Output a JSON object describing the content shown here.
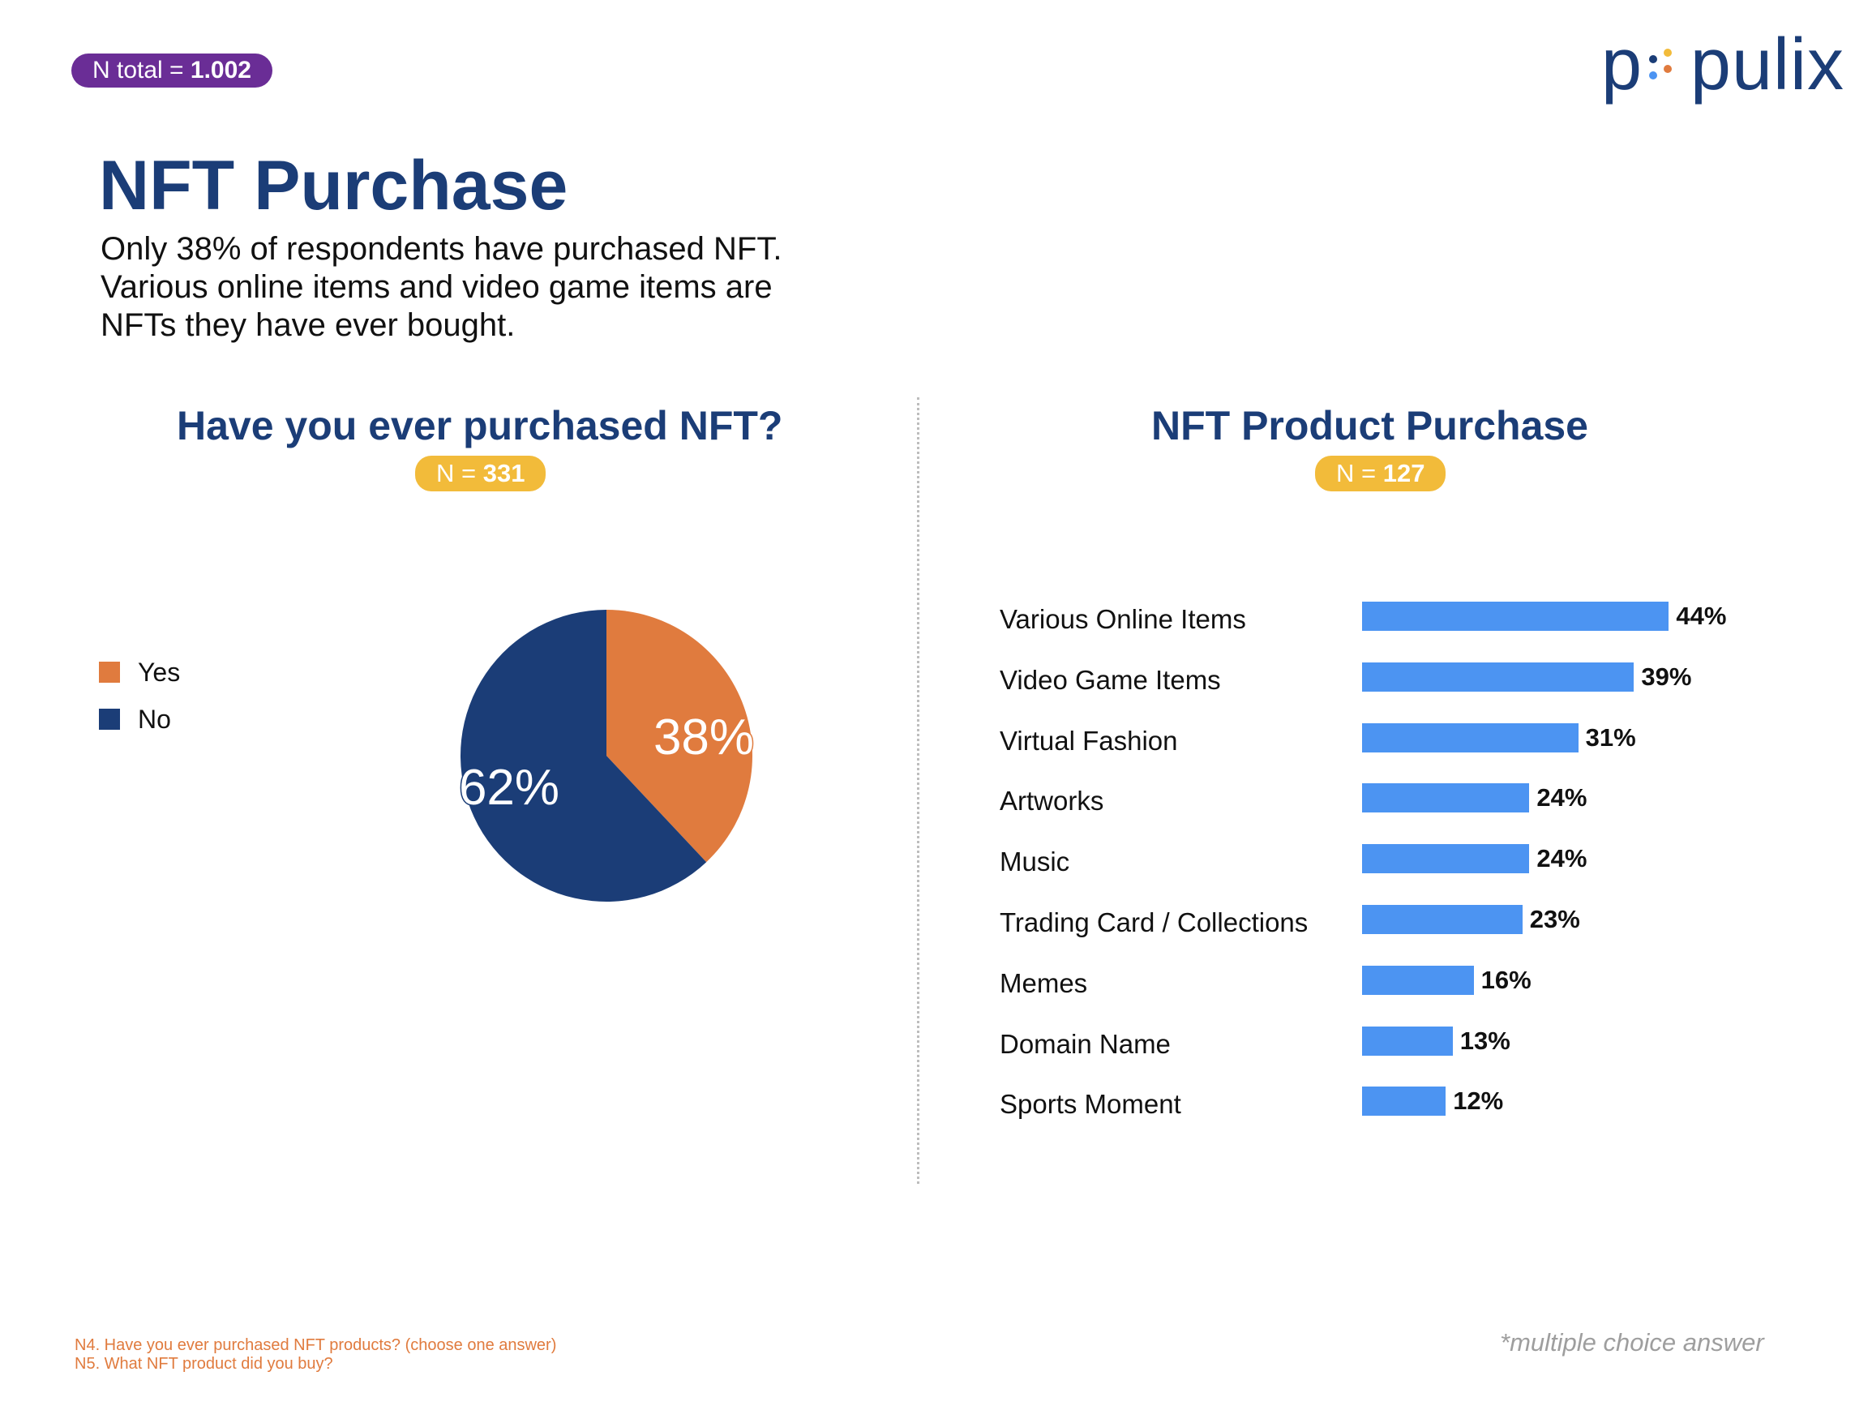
{
  "header": {
    "total_badge_label": "N total = ",
    "total_badge_value": "1.002",
    "logo_left": "p",
    "logo_right": "pulix",
    "logo_dot_colors": [
      "#1b3d77",
      "#f2bb3a",
      "#4c94f2",
      "#e07b3e"
    ]
  },
  "page_title": "NFT Purchase",
  "subtitle_lines": [
    "Only 38% of respondents have purchased NFT.",
    "Various online items and video game items are",
    "NFTs they have ever bought."
  ],
  "colors": {
    "navy": "#1b3d77",
    "orange": "#e07b3e",
    "bar_blue": "#4c94f2",
    "badge_purple": "#6a2d96",
    "badge_yellow": "#f2bb3a"
  },
  "chart_data": [
    {
      "type": "pie",
      "title": "Have you ever purchased NFT?",
      "n_label": "N = ",
      "n_value": "331",
      "slices": [
        {
          "name": "Yes",
          "value": 38,
          "label": "38%",
          "color": "#e07b3e"
        },
        {
          "name": "No",
          "value": 62,
          "label": "62%",
          "color": "#1b3d77"
        }
      ],
      "legend_position": "left"
    },
    {
      "type": "bar",
      "orientation": "horizontal",
      "title": "NFT Product Purchase",
      "n_label": "N = ",
      "n_value": "127",
      "categories": [
        "Various Online Items",
        "Video Game Items",
        "Virtual Fashion",
        "Artworks",
        "Music",
        "Trading Card / Collections",
        "Memes",
        "Domain Name",
        "Sports Moment"
      ],
      "values": [
        44,
        39,
        31,
        24,
        24,
        23,
        16,
        13,
        12
      ],
      "value_labels": [
        "44%",
        "39%",
        "31%",
        "24%",
        "24%",
        "23%",
        "16%",
        "13%",
        "12%"
      ],
      "color": "#4c94f2"
    }
  ],
  "footnotes": [
    "N4. Have you ever purchased NFT products? (choose one answer)",
    "N5. What NFT product did you buy?"
  ],
  "multi_note": "*multiple choice answer"
}
